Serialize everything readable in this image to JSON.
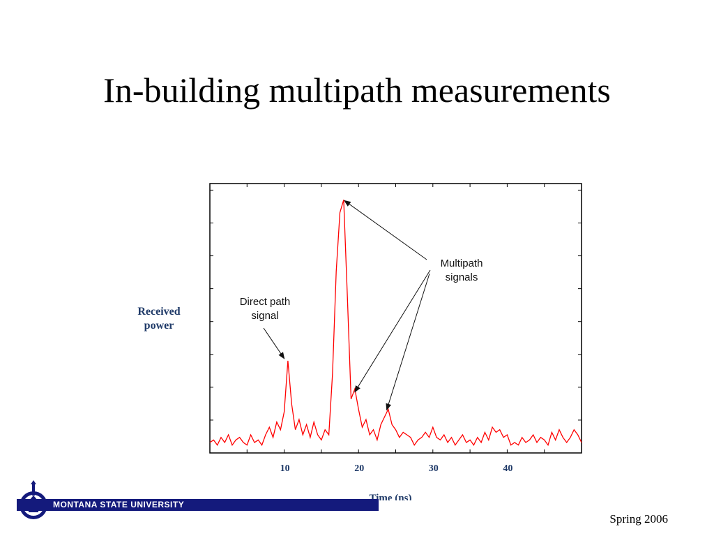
{
  "slide": {
    "title": "In-building multipath measurements",
    "footer_org": "MONTANA STATE UNIVERSITY",
    "date": "Spring 2006",
    "logo_icon": "msu-seal-icon"
  },
  "colors": {
    "trace": "#ff0000",
    "axis_label": "#1f3a68",
    "footer_bar": "#141a7c"
  },
  "chart_data": {
    "type": "line",
    "title": "",
    "xlabel": "Time (ns)",
    "ylabel": "Received power",
    "xlim": [
      0,
      50
    ],
    "ylim": [
      0,
      1
    ],
    "xticks": [
      "10",
      "20",
      "30",
      "40"
    ],
    "grid": false,
    "legend": "none",
    "series": [
      {
        "x": [
          0,
          0.5,
          1,
          1.5,
          2,
          2.5,
          3,
          3.5,
          4,
          4.5,
          5,
          5.5,
          6,
          6.5,
          7,
          7.5,
          8,
          8.5,
          9,
          9.5,
          10,
          10.5,
          11,
          11.5,
          12,
          12.5,
          13,
          13.5,
          14,
          14.5,
          15,
          15.5,
          16,
          16.5,
          17,
          17.5,
          18,
          18.5,
          19,
          19.5,
          20,
          20.5,
          21,
          21.5,
          22,
          22.5,
          23,
          23.5,
          24,
          24.5,
          25,
          25.5,
          26,
          26.5,
          27,
          27.5,
          28,
          28.5,
          29,
          29.5,
          30,
          30.5,
          31,
          31.5,
          32,
          32.5,
          33,
          33.5,
          34,
          34.5,
          35,
          35.5,
          36,
          36.5,
          37,
          37.5,
          38,
          38.5,
          39,
          39.5,
          40,
          40.5,
          41,
          41.5,
          42,
          42.5,
          43,
          43.5,
          44,
          44.5,
          45,
          45.5,
          46,
          46.5,
          47,
          47.5,
          48,
          48.5,
          49,
          49.5,
          50
        ],
        "y": [
          0.03,
          0.04,
          0.02,
          0.05,
          0.03,
          0.06,
          0.02,
          0.04,
          0.05,
          0.03,
          0.02,
          0.06,
          0.03,
          0.04,
          0.02,
          0.06,
          0.09,
          0.05,
          0.11,
          0.08,
          0.15,
          0.35,
          0.18,
          0.08,
          0.12,
          0.06,
          0.1,
          0.05,
          0.11,
          0.06,
          0.04,
          0.08,
          0.06,
          0.3,
          0.7,
          0.93,
          0.98,
          0.6,
          0.2,
          0.24,
          0.16,
          0.09,
          0.12,
          0.06,
          0.08,
          0.04,
          0.1,
          0.13,
          0.16,
          0.1,
          0.08,
          0.05,
          0.07,
          0.06,
          0.05,
          0.02,
          0.04,
          0.05,
          0.07,
          0.05,
          0.09,
          0.05,
          0.04,
          0.06,
          0.03,
          0.05,
          0.02,
          0.04,
          0.06,
          0.03,
          0.04,
          0.02,
          0.05,
          0.03,
          0.07,
          0.04,
          0.09,
          0.07,
          0.08,
          0.05,
          0.06,
          0.02,
          0.03,
          0.02,
          0.05,
          0.03,
          0.04,
          0.06,
          0.03,
          0.05,
          0.04,
          0.02,
          0.07,
          0.04,
          0.08,
          0.05,
          0.03,
          0.05,
          0.08,
          0.06,
          0.03
        ]
      }
    ],
    "annotations": [
      {
        "text": "Direct path\nsignal",
        "target_x": 10.2,
        "target_y": 0.35
      },
      {
        "text": "Multipath\nsignals",
        "targets": [
          {
            "x": 17.9,
            "y": 0.98
          },
          {
            "x": 19.3,
            "y": 0.23
          },
          {
            "x": 23.6,
            "y": 0.16
          }
        ]
      }
    ]
  }
}
